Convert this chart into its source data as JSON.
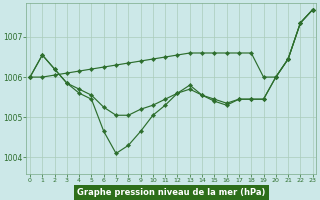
{
  "x": [
    0,
    1,
    2,
    3,
    4,
    5,
    6,
    7,
    8,
    9,
    10,
    11,
    12,
    13,
    14,
    15,
    16,
    17,
    18,
    19,
    20,
    21,
    22,
    23
  ],
  "line_diagonal": [
    1006.0,
    1006.0,
    1006.1,
    1006.1,
    1006.15,
    1006.2,
    1006.25,
    1006.3,
    1006.35,
    1006.4,
    1006.45,
    1006.5,
    1006.55,
    1006.6,
    1006.6,
    1006.6,
    1006.6,
    1006.6,
    1006.6,
    1006.0,
    1006.0,
    1006.45,
    1007.35,
    1007.68
  ],
  "line_zigzag": [
    1006.0,
    1006.55,
    1006.2,
    1005.85,
    1005.6,
    1005.45,
    1004.65,
    1004.1,
    1004.3,
    1004.65,
    1005.05,
    1005.3,
    1005.6,
    1005.8,
    1005.55,
    1005.4,
    1005.3,
    1005.45,
    1005.45,
    1005.45,
    1006.0,
    1006.45,
    1007.35,
    1007.68
  ],
  "line_mid": [
    1006.0,
    1006.55,
    1006.2,
    1005.85,
    1005.7,
    1005.55,
    1005.25,
    1005.05,
    1005.05,
    1005.2,
    1005.3,
    1005.45,
    1005.6,
    1005.7,
    1005.55,
    1005.45,
    1005.35,
    1005.45,
    1005.45,
    1005.45,
    1006.0,
    1006.45,
    1007.35,
    1007.68
  ],
  "line_color": "#2d6e2d",
  "bg_color": "#cce8e8",
  "grid_color": "#aaccbb",
  "xlabel": "Graphe pression niveau de la mer (hPa)",
  "xlabel_bg": "#2d6e1a",
  "xlabel_fg": "#ffffff",
  "yticks": [
    1004,
    1005,
    1006,
    1007
  ],
  "xtick_labels": [
    "0",
    "1",
    "2",
    "3",
    "4",
    "5",
    "6",
    "7",
    "8",
    "9",
    "10",
    "11",
    "12",
    "13",
    "14",
    "15",
    "16",
    "17",
    "18",
    "19",
    "20",
    "21",
    "22",
    "23"
  ],
  "ylim": [
    1003.6,
    1007.85
  ],
  "xlim": [
    -0.3,
    23.3
  ]
}
